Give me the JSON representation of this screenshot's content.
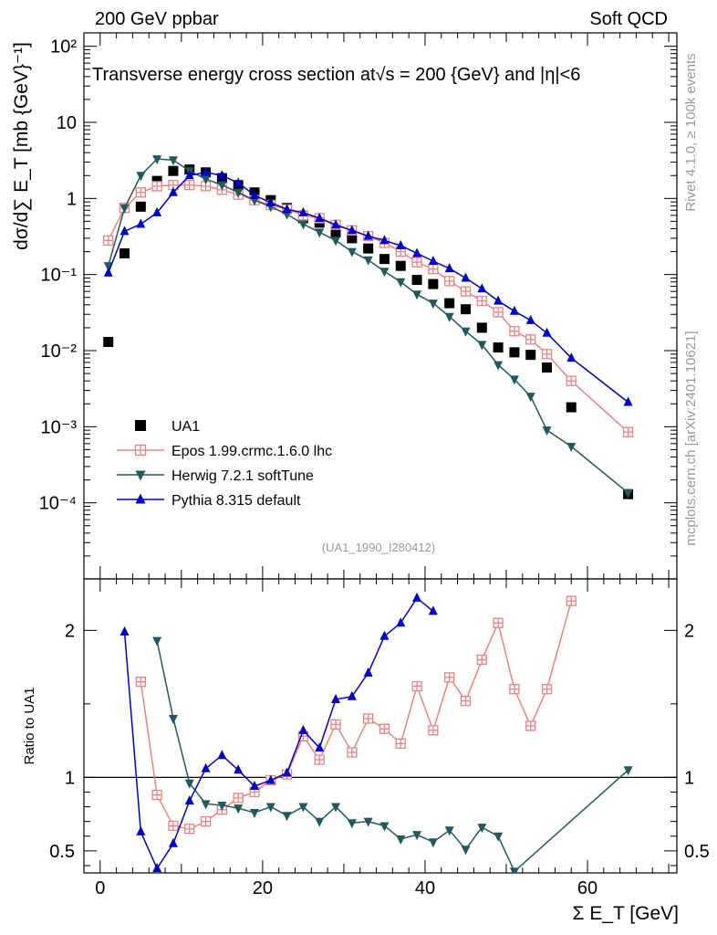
{
  "header": {
    "energy": "200 GeV ppbar",
    "category": "Soft QCD"
  },
  "side_labels": {
    "rivet": "Rivet 4.1.0, ≥ 100k events",
    "mcplots": "mcplots.cern.ch [arXiv:2401.10621]"
  },
  "analysis_id": "(UA1_1990_I280412)",
  "colors": {
    "ua1": "#000000",
    "epos": "#f08080",
    "herwig": "#1f5a5f",
    "pythia": "#0000cc"
  },
  "chart_data": [
    {
      "type": "scatter",
      "title": "Transverse energy cross section at√s = 200 {GeV} and |η|<6",
      "ylabel": "dσ/d∑ E_T [mb {GeV}⁻¹]",
      "yscale": "log",
      "xlim": [
        -2,
        71
      ],
      "ylim": [
        1e-05,
        150
      ],
      "y_ticks": [
        0.0001,
        0.001,
        0.01,
        0.1,
        1,
        10,
        100
      ],
      "y_tick_labels": [
        "10⁻⁴",
        "10⁻³",
        "10⁻²",
        "10⁻¹",
        "1",
        "10",
        "10²"
      ],
      "legend": [
        "UA1",
        "Epos 1.99.crmc.1.6.0 lhc",
        "Herwig 7.2.1 softTune",
        "Pythia 8.315 default"
      ],
      "series": [
        {
          "name": "UA1",
          "style": "square",
          "x": [
            1,
            3,
            5,
            7,
            9,
            11,
            13,
            15,
            17,
            19,
            21,
            23,
            25,
            27,
            29,
            31,
            33,
            35,
            37,
            39,
            41,
            43,
            45,
            47,
            49,
            51,
            53,
            55,
            58,
            65
          ],
          "y": [
            0.013,
            0.19,
            0.78,
            1.7,
            2.3,
            2.4,
            2.2,
            1.85,
            1.5,
            1.2,
            0.95,
            0.75,
            0.55,
            0.48,
            0.36,
            0.3,
            0.22,
            0.16,
            0.13,
            0.085,
            0.075,
            0.042,
            0.035,
            0.02,
            0.011,
            0.0095,
            0.0088,
            0.006,
            0.0018,
            0.00013
          ]
        },
        {
          "name": "Epos 1.99.crmc.1.6.0 lhc",
          "style": "cross",
          "x": [
            1,
            3,
            5,
            7,
            9,
            11,
            13,
            15,
            17,
            19,
            21,
            23,
            25,
            27,
            29,
            31,
            33,
            35,
            37,
            39,
            41,
            43,
            45,
            47,
            49,
            51,
            53,
            55,
            58,
            65
          ],
          "y": [
            0.28,
            0.75,
            1.2,
            1.45,
            1.5,
            1.5,
            1.45,
            1.3,
            1.12,
            0.95,
            0.82,
            0.72,
            0.6,
            0.55,
            0.45,
            0.38,
            0.32,
            0.26,
            0.2,
            0.145,
            0.118,
            0.082,
            0.06,
            0.045,
            0.032,
            0.018,
            0.014,
            0.009,
            0.004,
            0.00085
          ]
        },
        {
          "name": "Herwig 7.2.1 softTune",
          "style": "tri-down",
          "x": [
            1,
            3,
            5,
            7,
            9,
            11,
            13,
            15,
            17,
            19,
            21,
            23,
            25,
            27,
            29,
            31,
            33,
            35,
            37,
            39,
            41,
            43,
            45,
            47,
            49,
            51,
            53,
            55,
            58,
            65
          ],
          "y": [
            0.13,
            0.75,
            2.0,
            3.3,
            3.2,
            2.3,
            1.8,
            1.5,
            1.2,
            0.95,
            0.78,
            0.62,
            0.46,
            0.36,
            0.28,
            0.2,
            0.155,
            0.11,
            0.08,
            0.055,
            0.042,
            0.028,
            0.018,
            0.012,
            0.0065,
            0.0042,
            0.0025,
            0.0009,
            0.00055,
            0.000135
          ]
        },
        {
          "name": "Pythia 8.315 default",
          "style": "tri-up",
          "x": [
            1,
            3,
            5,
            7,
            9,
            11,
            13,
            15,
            17,
            19,
            21,
            23,
            25,
            27,
            29,
            31,
            33,
            35,
            37,
            39,
            41,
            43,
            45,
            47,
            49,
            51,
            53,
            55,
            58,
            65
          ],
          "y": [
            0.105,
            0.37,
            0.46,
            0.65,
            1.2,
            2.0,
            2.2,
            2.0,
            1.6,
            1.1,
            0.88,
            0.72,
            0.65,
            0.55,
            0.45,
            0.38,
            0.32,
            0.28,
            0.24,
            0.19,
            0.15,
            0.12,
            0.09,
            0.065,
            0.045,
            0.033,
            0.025,
            0.017,
            0.008,
            0.0021
          ]
        }
      ]
    },
    {
      "type": "line",
      "ylabel": "Ratio to UA1",
      "xlabel": "Σ E_T [GeV]",
      "xlim": [
        -2,
        71
      ],
      "ylim": [
        0.35,
        2.35
      ],
      "x_ticks": [
        0,
        20,
        40,
        60
      ],
      "x_tick_labels": [
        "0",
        "20",
        "40",
        "60"
      ],
      "y_ticks": [
        0.5,
        1,
        2
      ],
      "y_tick_labels": [
        "0.5",
        "1",
        "2"
      ],
      "reference": 1,
      "series": [
        {
          "name": "Epos 1.99.crmc.1.6.0 lhc",
          "style": "cross",
          "x": [
            5,
            7,
            9,
            11,
            13,
            15,
            17,
            19,
            21,
            23,
            25,
            27,
            29,
            31,
            33,
            35,
            37,
            39,
            41,
            43,
            45,
            47,
            49,
            51,
            53,
            55,
            58
          ],
          "y": [
            1.65,
            0.88,
            0.67,
            0.65,
            0.7,
            0.78,
            0.86,
            0.9,
            0.98,
            1.02,
            1.28,
            1.12,
            1.36,
            1.17,
            1.4,
            1.33,
            1.23,
            1.62,
            1.32,
            1.68,
            1.52,
            1.8,
            2.05,
            1.6,
            1.35,
            1.6,
            2.2
          ]
        },
        {
          "name": "Herwig 7.2.1 softTune",
          "style": "tri-down",
          "x": [
            7,
            9,
            11,
            13,
            15,
            17,
            19,
            21,
            23,
            25,
            27,
            29,
            31,
            33,
            35,
            37,
            39,
            41,
            43,
            45,
            47,
            49,
            51,
            65
          ],
          "y": [
            1.93,
            1.4,
            0.96,
            0.82,
            0.81,
            0.79,
            0.76,
            0.8,
            0.74,
            0.8,
            0.7,
            0.8,
            0.69,
            0.7,
            0.67,
            0.58,
            0.61,
            0.56,
            0.64,
            0.51,
            0.66,
            0.6,
            0.36,
            1.05
          ]
        },
        {
          "name": "Pythia 8.315 default",
          "style": "tri-up",
          "x": [
            3,
            5,
            7,
            9,
            11,
            13,
            15,
            17,
            19,
            21,
            23,
            25,
            27,
            29,
            31,
            33,
            35,
            37,
            39,
            41
          ],
          "y": [
            1.99,
            0.63,
            0.38,
            0.55,
            0.84,
            1.06,
            1.15,
            1.05,
            0.94,
            0.98,
            1.03,
            1.32,
            1.2,
            1.53,
            1.55,
            1.71,
            1.96,
            2.05,
            2.22,
            2.13
          ]
        }
      ]
    }
  ]
}
